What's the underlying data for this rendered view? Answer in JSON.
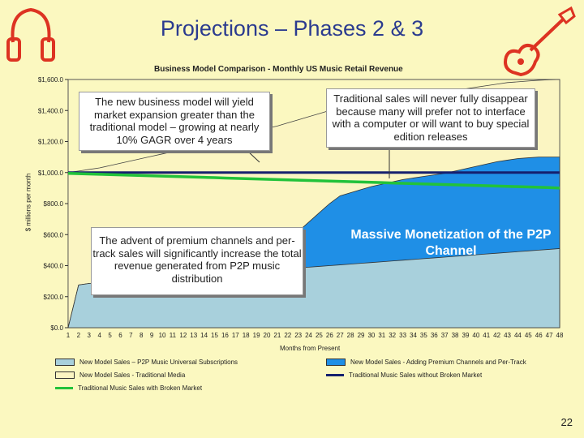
{
  "slide": {
    "title": "Projections – Phases 2 & 3",
    "page_number": "22"
  },
  "icons": {
    "left": "headphones-icon",
    "right": "guitar-icon"
  },
  "callouts": {
    "top_left": "The new business model will yield market expansion greater than the traditional model – growing at nearly 10% GAGR over 4 years",
    "top_right": "Traditional sales will never fully disappear because many will prefer not to interface with a computer or will want to buy special edition releases",
    "bottom_left": "The advent of premium channels and per-track sales will significantly increase the total revenue generated from P2P music distribution",
    "bottom_right": "Massive Monetization of the P2P Channel"
  },
  "colors": {
    "background": "#fbf8c0",
    "title": "#2b3b8f",
    "p2p_subscriptions": "#a8d0dc",
    "premium_per_track": "#1f8fe6",
    "traditional_media": "#fbf5c2",
    "without_broken_market": "#15206e",
    "with_broken_market": "#22c23a"
  },
  "chart_data": {
    "type": "area",
    "title": "Business Model Comparison - Monthly US Music Retail Revenue",
    "xlabel": "Months from Present",
    "ylabel": "$ millions per month",
    "ylim": [
      0,
      1600
    ],
    "yticks": [
      "$0.0",
      "$200.0",
      "$400.0",
      "$600.0",
      "$800.0",
      "$1,000.0",
      "$1,200.0",
      "$1,400.0",
      "$1,600.0"
    ],
    "x": [
      1,
      2,
      3,
      4,
      5,
      6,
      7,
      8,
      9,
      10,
      11,
      12,
      13,
      14,
      15,
      16,
      17,
      18,
      19,
      20,
      21,
      22,
      23,
      24,
      25,
      26,
      27,
      28,
      29,
      30,
      31,
      32,
      33,
      34,
      35,
      36,
      37,
      38,
      39,
      40,
      41,
      42,
      43,
      44,
      45,
      46,
      47,
      48
    ],
    "series": [
      {
        "name": "New Model Sales – P2P Music Universal Subscriptions",
        "kind": "area",
        "values": [
          0,
          275,
          285,
          290,
          295,
          300,
          305,
          310,
          315,
          320,
          325,
          330,
          335,
          340,
          345,
          350,
          355,
          360,
          365,
          370,
          375,
          380,
          385,
          390,
          395,
          400,
          405,
          410,
          415,
          420,
          425,
          430,
          435,
          440,
          445,
          450,
          455,
          460,
          465,
          470,
          475,
          480,
          485,
          490,
          495,
          500,
          505,
          510
        ]
      },
      {
        "name": "New Model Sales - Adding Premium Channels and Per-Track",
        "kind": "area",
        "values": [
          0,
          275,
          285,
          290,
          295,
          300,
          305,
          310,
          315,
          320,
          325,
          330,
          335,
          340,
          345,
          350,
          355,
          380,
          420,
          470,
          520,
          570,
          620,
          680,
          740,
          800,
          850,
          870,
          890,
          910,
          925,
          940,
          955,
          965,
          975,
          985,
          995,
          1010,
          1025,
          1040,
          1055,
          1070,
          1080,
          1090,
          1095,
          1100,
          1100,
          1100
        ]
      },
      {
        "name": "New Model Sales - Traditional Media",
        "kind": "area",
        "values": [
          1000,
          1010,
          1020,
          1030,
          1045,
          1060,
          1075,
          1090,
          1105,
          1120,
          1135,
          1150,
          1165,
          1180,
          1195,
          1210,
          1225,
          1245,
          1265,
          1285,
          1300,
          1320,
          1340,
          1360,
          1380,
          1400,
          1415,
          1430,
          1440,
          1450,
          1460,
          1470,
          1480,
          1490,
          1500,
          1510,
          1520,
          1530,
          1540,
          1550,
          1560,
          1570,
          1580,
          1585,
          1590,
          1595,
          1598,
          1600
        ]
      },
      {
        "name": "Traditional Music Sales without Broken Market",
        "kind": "line",
        "values": [
          1000,
          1000,
          1000,
          1000,
          1000,
          1000,
          1000,
          1000,
          1000,
          1000,
          1000,
          1000,
          1000,
          1000,
          1000,
          1000,
          1000,
          1000,
          1000,
          1000,
          1000,
          1000,
          1000,
          1000,
          1000,
          1000,
          1000,
          1000,
          1000,
          1000,
          1000,
          1000,
          1000,
          1000,
          1000,
          1000,
          1000,
          1000,
          1000,
          1000,
          1000,
          1000,
          1000,
          1000,
          1000,
          1000,
          1000,
          1000
        ]
      },
      {
        "name": "Traditional Music Sales with Broken Market",
        "kind": "line",
        "values": [
          995,
          993,
          991,
          989,
          987,
          985,
          983,
          981,
          979,
          977,
          975,
          973,
          971,
          969,
          967,
          965,
          963,
          961,
          959,
          957,
          955,
          953,
          951,
          949,
          947,
          945,
          943,
          941,
          939,
          937,
          935,
          933,
          931,
          929,
          927,
          925,
          923,
          921,
          919,
          917,
          915,
          913,
          911,
          909,
          907,
          905,
          903,
          900
        ]
      }
    ],
    "legend": {
      "placement": "bottom",
      "entries": [
        "New Model Sales – P2P Music Universal Subscriptions",
        "New Model Sales - Adding Premium Channels and Per-Track",
        "New Model Sales - Traditional Media",
        "Traditional Music Sales without Broken Market",
        "Traditional Music Sales with Broken Market"
      ]
    },
    "grid": false
  }
}
